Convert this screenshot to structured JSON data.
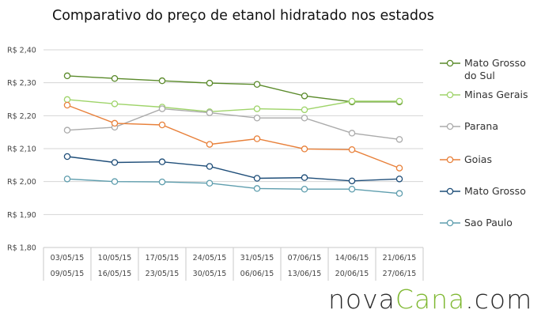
{
  "chart_data": {
    "type": "line",
    "title": "Comparativo do preço de etanol hidratado nos estados",
    "xlabel": "",
    "ylabel": "",
    "ylim": [
      1.8,
      2.4
    ],
    "yticks": [
      "R$ 1,80",
      "R$ 1,90",
      "R$ 2,00",
      "R$ 2,10",
      "R$ 2,20",
      "R$ 2,30",
      "R$ 2,40"
    ],
    "categories": [
      [
        "03/05/15",
        "09/05/15"
      ],
      [
        "10/05/15",
        "16/05/15"
      ],
      [
        "17/05/15",
        "23/05/15"
      ],
      [
        "24/05/15",
        "30/05/15"
      ],
      [
        "31/05/15",
        "06/06/15"
      ],
      [
        "07/06/15",
        "13/06/15"
      ],
      [
        "14/06/15",
        "20/06/15"
      ],
      [
        "21/06/15",
        "27/06/15"
      ]
    ],
    "legend_position": "right",
    "grid": "horizontal",
    "series": [
      {
        "name": "Mato Grosso do Sul",
        "color": "#5a8a2a",
        "values": [
          2.321,
          2.313,
          2.306,
          2.299,
          2.295,
          2.26,
          2.242,
          2.242
        ]
      },
      {
        "name": "Minas Gerais",
        "color": "#9fd46a",
        "values": [
          2.249,
          2.236,
          2.226,
          2.212,
          2.221,
          2.218,
          2.244,
          2.244
        ]
      },
      {
        "name": "Parana",
        "color": "#ababab",
        "values": [
          2.156,
          2.165,
          2.221,
          2.209,
          2.193,
          2.193,
          2.147,
          2.128
        ]
      },
      {
        "name": "Goias",
        "color": "#e8803a",
        "values": [
          2.232,
          2.177,
          2.172,
          2.113,
          2.13,
          2.099,
          2.097,
          2.041
        ]
      },
      {
        "name": "Mato Grosso",
        "color": "#1f4e79",
        "values": [
          2.076,
          2.058,
          2.06,
          2.046,
          2.01,
          2.012,
          2.002,
          2.008
        ]
      },
      {
        "name": "Sao Paulo",
        "color": "#5f9eae",
        "values": [
          2.008,
          2.0,
          1.999,
          1.995,
          1.979,
          1.977,
          1.977,
          1.964
        ]
      }
    ]
  },
  "brand": {
    "part1": "nova",
    "part2": "Cana",
    "part3": ".com"
  }
}
